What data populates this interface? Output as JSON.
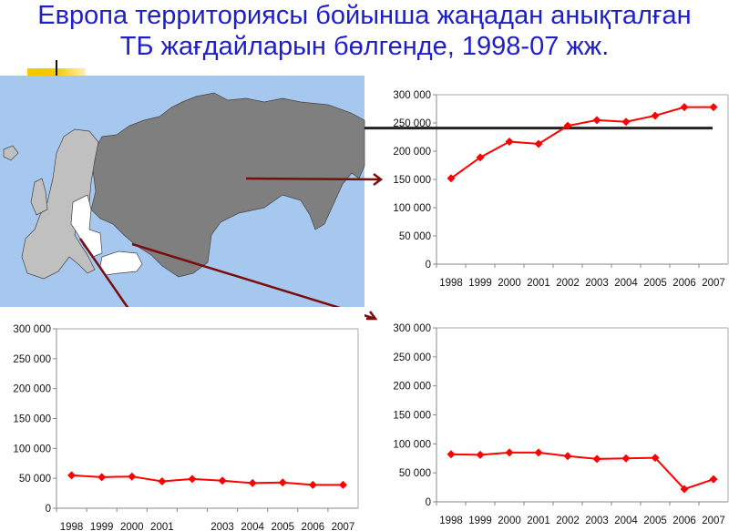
{
  "title": {
    "line1": "Европа территориясы бойынша жаңадан анықталған",
    "line2": "ТБ жағдайларын бөлгенде, 1998-07 жж."
  },
  "colors": {
    "title": "#1f1fc8",
    "series": "#ff0000",
    "arrow": "#7b0d0d",
    "map_sea": "#a6c8ee",
    "map_east": "#7f7f7f",
    "map_west": "#c0c0c0",
    "map_highlight": "#ffffff"
  },
  "chart_data": [
    {
      "type": "line",
      "position": "top-right",
      "categories": [
        "1998",
        "1999",
        "2000",
        "2001",
        "2002",
        "2003",
        "2004",
        "2005",
        "2006",
        "2007"
      ],
      "values": [
        152000,
        189000,
        217000,
        213000,
        245000,
        255000,
        252000,
        263000,
        278000,
        278000
      ],
      "yticks": [
        "0",
        "50 000",
        "100 000",
        "150 000",
        "200 000",
        "250 000",
        "300 000"
      ],
      "ylim": [
        0,
        300000
      ],
      "reference_line": 241000
    },
    {
      "type": "line",
      "position": "bottom-left",
      "categories": [
        "1998",
        "1999",
        "2000",
        "2001",
        "",
        "2003",
        "2004",
        "2005",
        "2006",
        "2007"
      ],
      "values": [
        55000,
        52000,
        53000,
        45000,
        49000,
        46000,
        42000,
        43000,
        39000,
        39000
      ],
      "yticks": [
        "0",
        "50 000",
        "100 000",
        "150 000",
        "200 000",
        "250 000",
        "300 000"
      ],
      "ylim": [
        0,
        300000
      ]
    },
    {
      "type": "line",
      "position": "bottom-right",
      "categories": [
        "1998",
        "1999",
        "2000",
        "2001",
        "2002",
        "2003",
        "2004",
        "2005",
        "2006",
        "2007"
      ],
      "values": [
        82000,
        81000,
        85000,
        85000,
        79000,
        74000,
        75000,
        76000,
        22000,
        39000
      ],
      "yticks": [
        "0",
        "50 000",
        "100 000",
        "150 000",
        "200 000",
        "250 000",
        "300 000"
      ],
      "ylim": [
        0,
        300000
      ]
    }
  ]
}
